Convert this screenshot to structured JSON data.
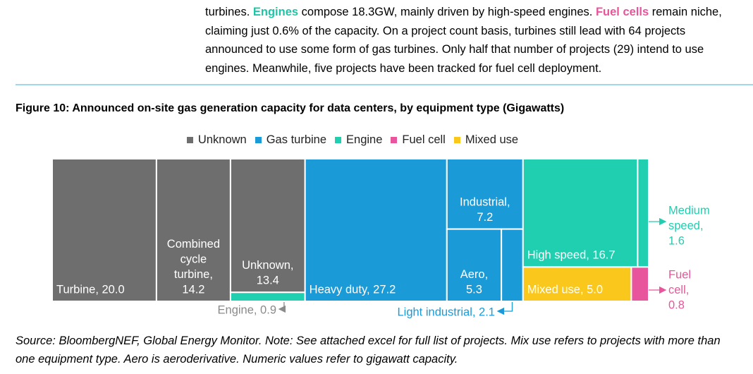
{
  "paragraph": {
    "parts": [
      "turbines. ",
      "Engines",
      " compose 18.3GW, mainly driven by high-speed engines. ",
      "Fuel cells",
      " remain niche, claiming just 0.6% of the capacity. On a project count basis, turbines still lead with 64 projects announced to use some form of gas turbines. Only half that number of projects (29) intend to use engines. Meanwhile, five projects have been tracked for fuel cell deployment."
    ]
  },
  "figure": {
    "title": "Figure 10: Announced on-site gas generation capacity for data centers, by equipment type (Gigawatts)"
  },
  "chart_data": {
    "type": "treemap",
    "legend": [
      {
        "name": "Unknown",
        "color": "#6e6e6e"
      },
      {
        "name": "Gas turbine",
        "color": "#1a9bd7"
      },
      {
        "name": "Engine",
        "color": "#20cfb0"
      },
      {
        "name": "Fuel cell",
        "color": "#e8559c"
      },
      {
        "name": "Mixed use",
        "color": "#fac81c"
      }
    ],
    "nodes": [
      {
        "label": [
          "Turbine, 20.0"
        ],
        "value": 20,
        "color": "#6e6e6e"
      },
      {
        "label": [
          "Combined",
          "cycle",
          "turbine,",
          "14.2"
        ],
        "value": 14.2,
        "color": "#6e6e6e"
      },
      {
        "label": [
          "Unknown,",
          "13.4"
        ],
        "value": 13.4,
        "color": "#6e6e6e"
      },
      {
        "label": [
          "Engine, 0.9"
        ],
        "value": 0.9,
        "color": "#20cfb0"
      },
      {
        "label": [
          "Heavy duty, 27.2"
        ],
        "value": 27.2,
        "color": "#1a9bd7"
      },
      {
        "label": [
          "Industrial,",
          "7.2"
        ],
        "value": 7.2,
        "color": "#1a9bd7"
      },
      {
        "label": [
          "Aero,",
          "5.3"
        ],
        "value": 5.3,
        "color": "#1a9bd7"
      },
      {
        "label": [
          "Light industrial, 2.1"
        ],
        "value": 2.1,
        "color": "#1a9bd7"
      },
      {
        "label": [
          "High speed, 16.7"
        ],
        "value": 16.7,
        "color": "#20cfb0"
      },
      {
        "label": [
          "Medium",
          "speed,",
          "1.6"
        ],
        "value": 1.6,
        "color": "#20cfb0"
      },
      {
        "label": [
          "Mixed use, 5.0"
        ],
        "value": 5,
        "color": "#fac81c"
      },
      {
        "label": [
          "Fuel",
          "cell,",
          "0.8"
        ],
        "value": 0.8,
        "color": "#e8559c"
      }
    ]
  },
  "source": "Source: BloombergNEF, Global Energy Monitor. Note: See attached excel for full list of projects. Mix use refers to projects with more than one equipment type. Aero is aeroderivative. Numeric values refer to gigawatt capacity."
}
